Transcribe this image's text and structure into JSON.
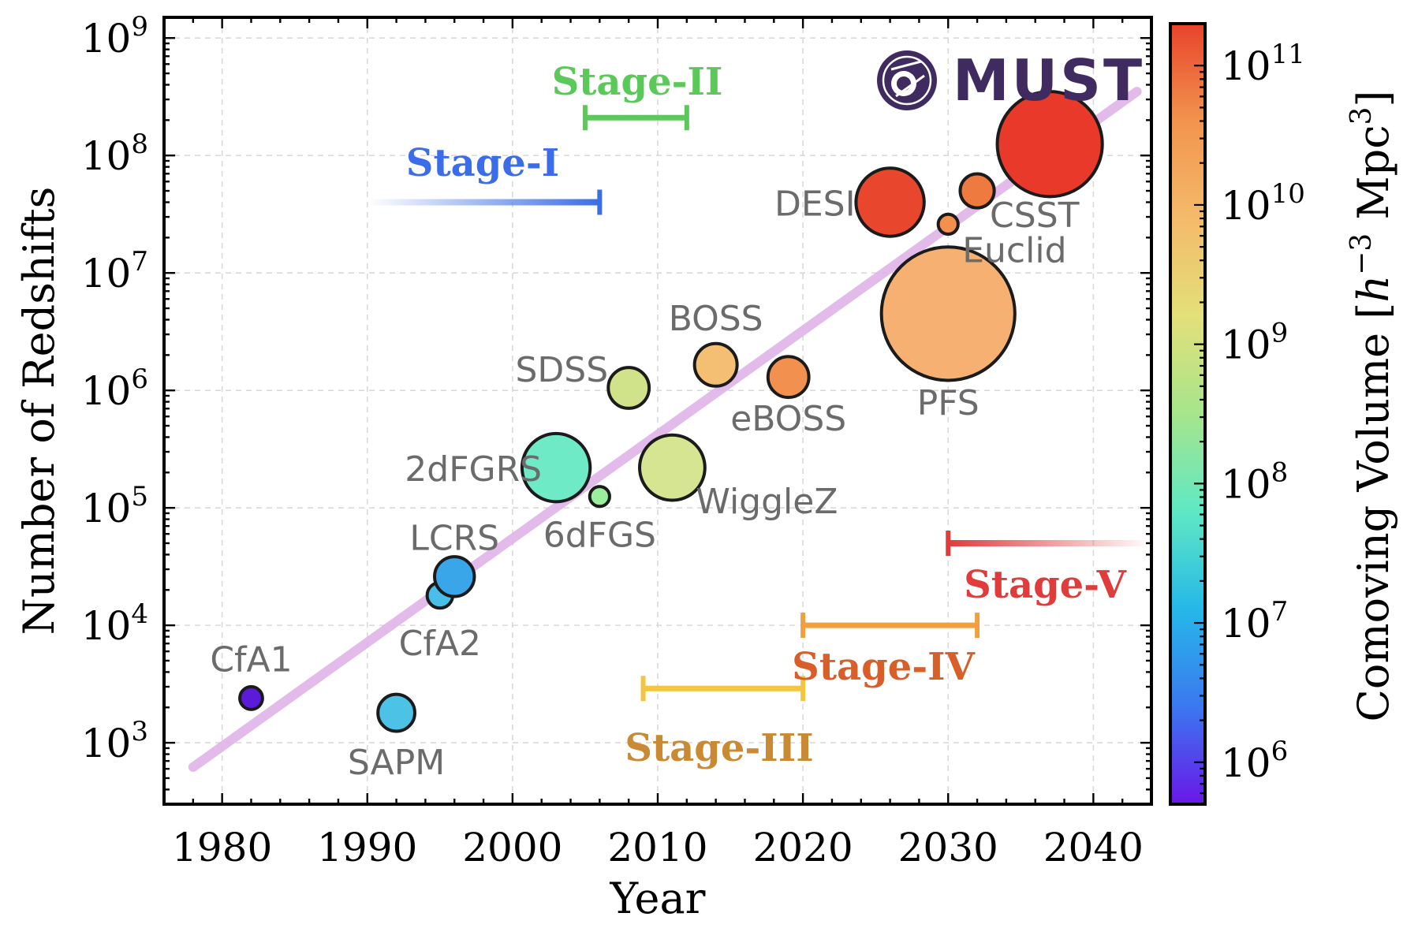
{
  "chart_data": {
    "type": "scatter",
    "title": "",
    "xlabel": "Year",
    "ylabel": "Number of Redshifts",
    "xlim": [
      1976,
      2044
    ],
    "ylim": [
      300,
      1500000000
    ],
    "yscale": "log",
    "x_ticks": [
      "1980",
      "1990",
      "2000",
      "2010",
      "2020",
      "2030",
      "2040"
    ],
    "y_ticks": [
      {
        "base": "10",
        "exp": "3"
      },
      {
        "base": "10",
        "exp": "4"
      },
      {
        "base": "10",
        "exp": "5"
      },
      {
        "base": "10",
        "exp": "6"
      },
      {
        "base": "10",
        "exp": "7"
      },
      {
        "base": "10",
        "exp": "8"
      },
      {
        "base": "10",
        "exp": "9"
      }
    ],
    "grid": true,
    "trend_line": {
      "color": "#e0b4e8",
      "x": [
        1978,
        2043
      ],
      "y": [
        620,
        350000000
      ]
    },
    "colorbar": {
      "label_prefix": "Comoving Volume [",
      "label_var": "h",
      "label_exp": "−3",
      "label_unit": " Mpc",
      "label_unit_exp": "3",
      "label_suffix": "]",
      "scale": "log",
      "range": [
        500000,
        200000000000
      ],
      "ticks": [
        {
          "base": "10",
          "exp": "6"
        },
        {
          "base": "10",
          "exp": "7"
        },
        {
          "base": "10",
          "exp": "8"
        },
        {
          "base": "10",
          "exp": "9"
        },
        {
          "base": "10",
          "exp": "10"
        },
        {
          "base": "10",
          "exp": "11"
        }
      ],
      "colormap": [
        "#6a17e8",
        "#3b78f0",
        "#25b8e8",
        "#5fe8c4",
        "#a6e58c",
        "#e3e07a",
        "#f4bb6a",
        "#f2944e",
        "#e8432b"
      ]
    },
    "points": [
      {
        "name": "CfA1",
        "x": 1982,
        "y": 2400,
        "size": 0.4,
        "color": "#5b1bd8"
      },
      {
        "name": "SAPM",
        "x": 1992,
        "y": 1800,
        "size": 0.65,
        "color": "#4cc3e6"
      },
      {
        "name": "CfA2",
        "x": 1995,
        "y": 18000,
        "size": 0.45,
        "color": "#47bfe8"
      },
      {
        "name": "LCRS",
        "x": 1996,
        "y": 26000,
        "size": 0.7,
        "color": "#3aa6ea"
      },
      {
        "name": "2dFGRS",
        "x": 2003,
        "y": 220000,
        "size": 1.2,
        "color": "#6eeac7"
      },
      {
        "name": "6dFGS",
        "x": 2006,
        "y": 125000,
        "size": 0.35,
        "color": "#9bee9c"
      },
      {
        "name": "SDSS",
        "x": 2008,
        "y": 1050000,
        "size": 0.72,
        "color": "#d0e28a"
      },
      {
        "name": "WiggleZ",
        "x": 2011,
        "y": 220000,
        "size": 1.15,
        "color": "#d5e592"
      },
      {
        "name": "BOSS",
        "x": 2014,
        "y": 1650000,
        "size": 0.75,
        "color": "#f4bf73"
      },
      {
        "name": "eBOSS",
        "x": 2019,
        "y": 1300000,
        "size": 0.72,
        "color": "#f2914f"
      },
      {
        "name": "DESI",
        "x": 2026,
        "y": 40000000,
        "size": 1.2,
        "color": "#e8472e"
      },
      {
        "name": "Euclid",
        "x": 2030,
        "y": 26000000,
        "size": 0.35,
        "color": "#f2904d"
      },
      {
        "name": "PFS",
        "x": 2030,
        "y": 4500000,
        "size": 2.35,
        "color": "#f5b072"
      },
      {
        "name": "CSST",
        "x": 2032,
        "y": 50000000,
        "size": 0.6,
        "color": "#ef7a40"
      },
      {
        "name": "",
        "x": 2037,
        "y": 125000000,
        "size": 1.85,
        "color": "#e8392a"
      }
    ],
    "stages": [
      {
        "name": "Stage-I",
        "x": [
          1990,
          2006
        ],
        "y": 40000000,
        "color": "#3c6de8",
        "style": "fade-left"
      },
      {
        "name": "Stage-II",
        "x": [
          2005,
          2012
        ],
        "y": 210000000,
        "color": "#5bc95a",
        "style": "bracket"
      },
      {
        "name": "Stage-III",
        "x": [
          2009,
          2020
        ],
        "y": 2900,
        "color": "#f4c63f",
        "label_color": "#c98a33",
        "style": "bracket"
      },
      {
        "name": "Stage-IV",
        "x": [
          2020,
          2032
        ],
        "y": 10000,
        "color": "#f0a040",
        "label_color": "#d85f2a",
        "style": "bracket"
      },
      {
        "name": "Stage-V",
        "x": [
          2030,
          2044
        ],
        "y": 50000,
        "color": "#e03c3c",
        "style": "fade-right"
      }
    ],
    "logo": {
      "text": "MUST",
      "icon": "must-observatory-logo-icon",
      "color": "#3f2b5f"
    }
  }
}
